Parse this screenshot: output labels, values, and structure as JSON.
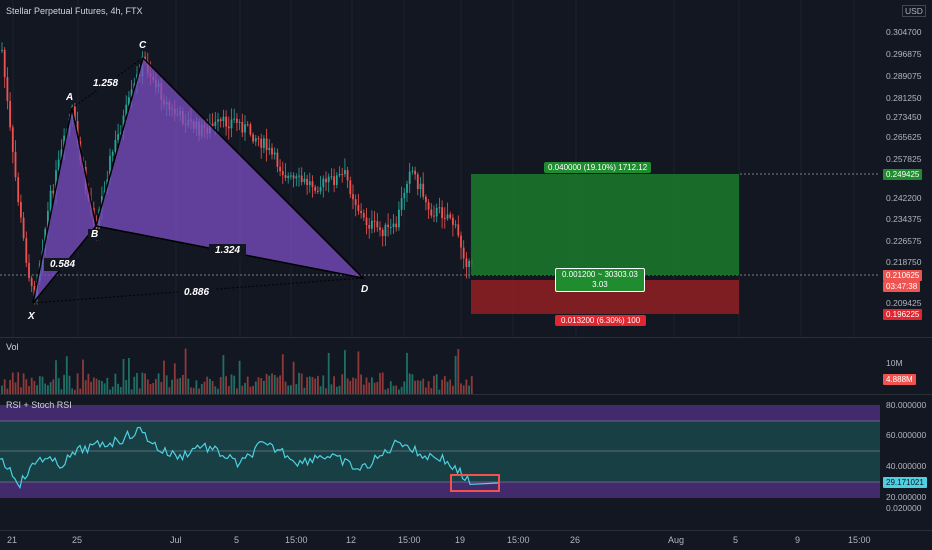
{
  "header": {
    "title": "Stellar Perpetual Futures, 4h, FTX",
    "currency": "USD"
  },
  "price_axis": {
    "ticks": [
      "0.304700",
      "0.296875",
      "0.289075",
      "0.281250",
      "0.273450",
      "0.265625",
      "0.257825",
      "0.242200",
      "0.234375",
      "0.226575",
      "0.218750",
      "0.209425"
    ],
    "target_tag": "0.249425",
    "current_tag": "0.210625",
    "countdown": "03:47:38",
    "stop_tag": "0.196225"
  },
  "pattern": {
    "points": {
      "x": "X",
      "a": "A",
      "b": "B",
      "c": "C",
      "d": "D"
    },
    "ratios": {
      "xa_b": "0.584",
      "ab_c": "1.258",
      "bc_d": "1.324",
      "xa_d": "0.886"
    }
  },
  "position": {
    "target_label": "0.040000 (19.10%) 1712.12",
    "entry_label_1": "0.001200 ~ 30303.03",
    "entry_label_2": "3.03",
    "stop_label": "0.013200 (6.30%) 100"
  },
  "volume": {
    "label": "Vol",
    "tick": "10M",
    "current_tag": "4.888M"
  },
  "rsi": {
    "label": "RSI + Stoch RSI",
    "ticks": [
      "80.000000",
      "60.000000",
      "40.000000",
      "20.000000",
      "0.020000"
    ],
    "current_tag": "29.171021"
  },
  "time_axis": [
    "21",
    "25",
    "Jul",
    "5",
    "15:00",
    "12",
    "15:00",
    "19",
    "15:00",
    "26",
    "Aug",
    "5",
    "9",
    "15:00"
  ],
  "colors": {
    "bg": "#131722",
    "up": "#26a69a",
    "down": "#ef5350",
    "pattern": "#7b4fc4",
    "profit": "#1b7a2a",
    "loss": "#8b1f24",
    "rsi_line": "#4dd0e1"
  }
}
